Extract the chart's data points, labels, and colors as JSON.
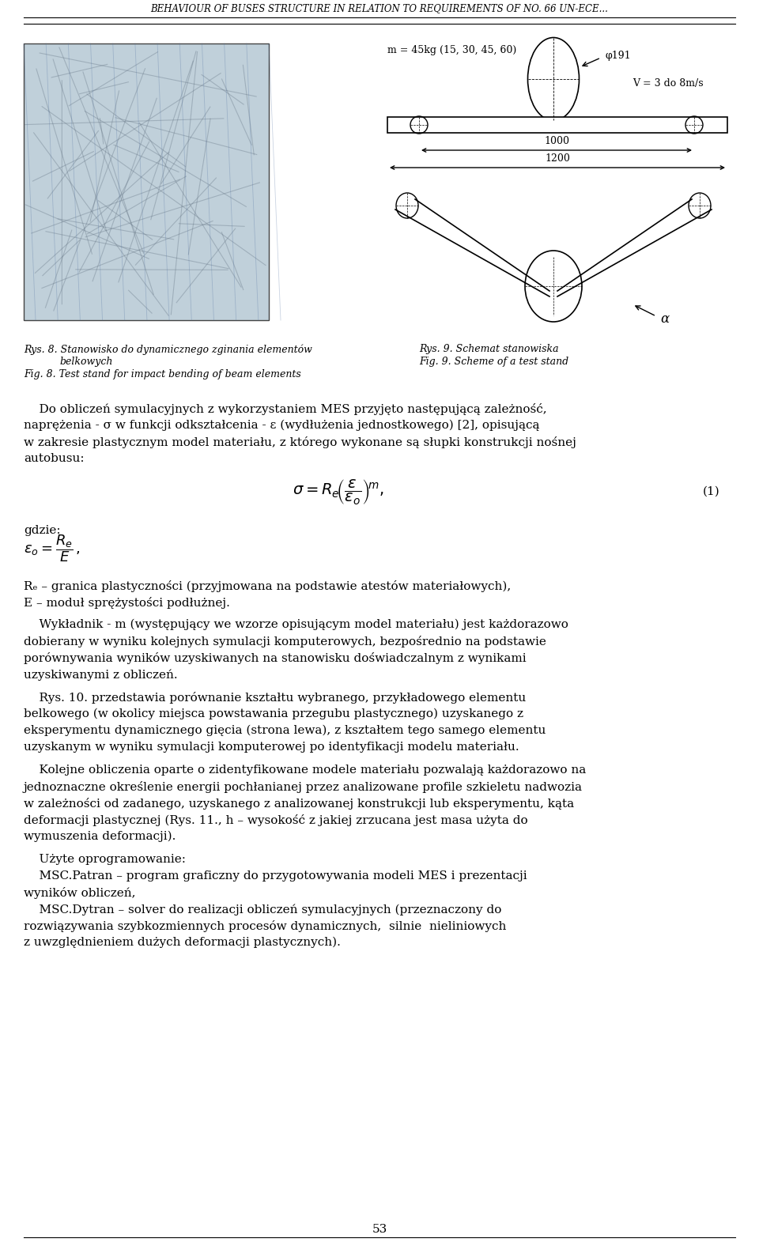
{
  "header": "BEHAVIOUR OF BUSES STRUCTURE IN RELATION TO REQUIREMENTS OF NO. 66 UN-ECE...",
  "caption_left_line1": "Rys. 8. Stanowisko do dynamicznego zginania elementów",
  "caption_left_line2": "belkowych",
  "caption_left_line3": "Fig. 8. Test stand for impact bending of beam elements",
  "caption_right_line1": "Rys. 9. Schemat stanowiska",
  "caption_right_line2": "Fig. 9. Scheme of a test stand",
  "diagram_label_m": "m = 45kg (15, 30, 45, 60)",
  "diagram_label_phi": "φ191",
  "diagram_label_V": "V = 3 do 8m/s",
  "diagram_dim_1000": "1000",
  "diagram_dim_1200": "1200",
  "diagram_label_alpha": "α",
  "formula_number": "(1)",
  "gdzie_label": "gdzie:",
  "Re_desc": "Rₑ – granica plastyczności (przyjmowana na podstawie atestów materiałowych),",
  "E_desc": "E – moduł sprężystości podłużnej.",
  "page_number": "53",
  "bg_color": "#ffffff",
  "text_color": "#000000"
}
